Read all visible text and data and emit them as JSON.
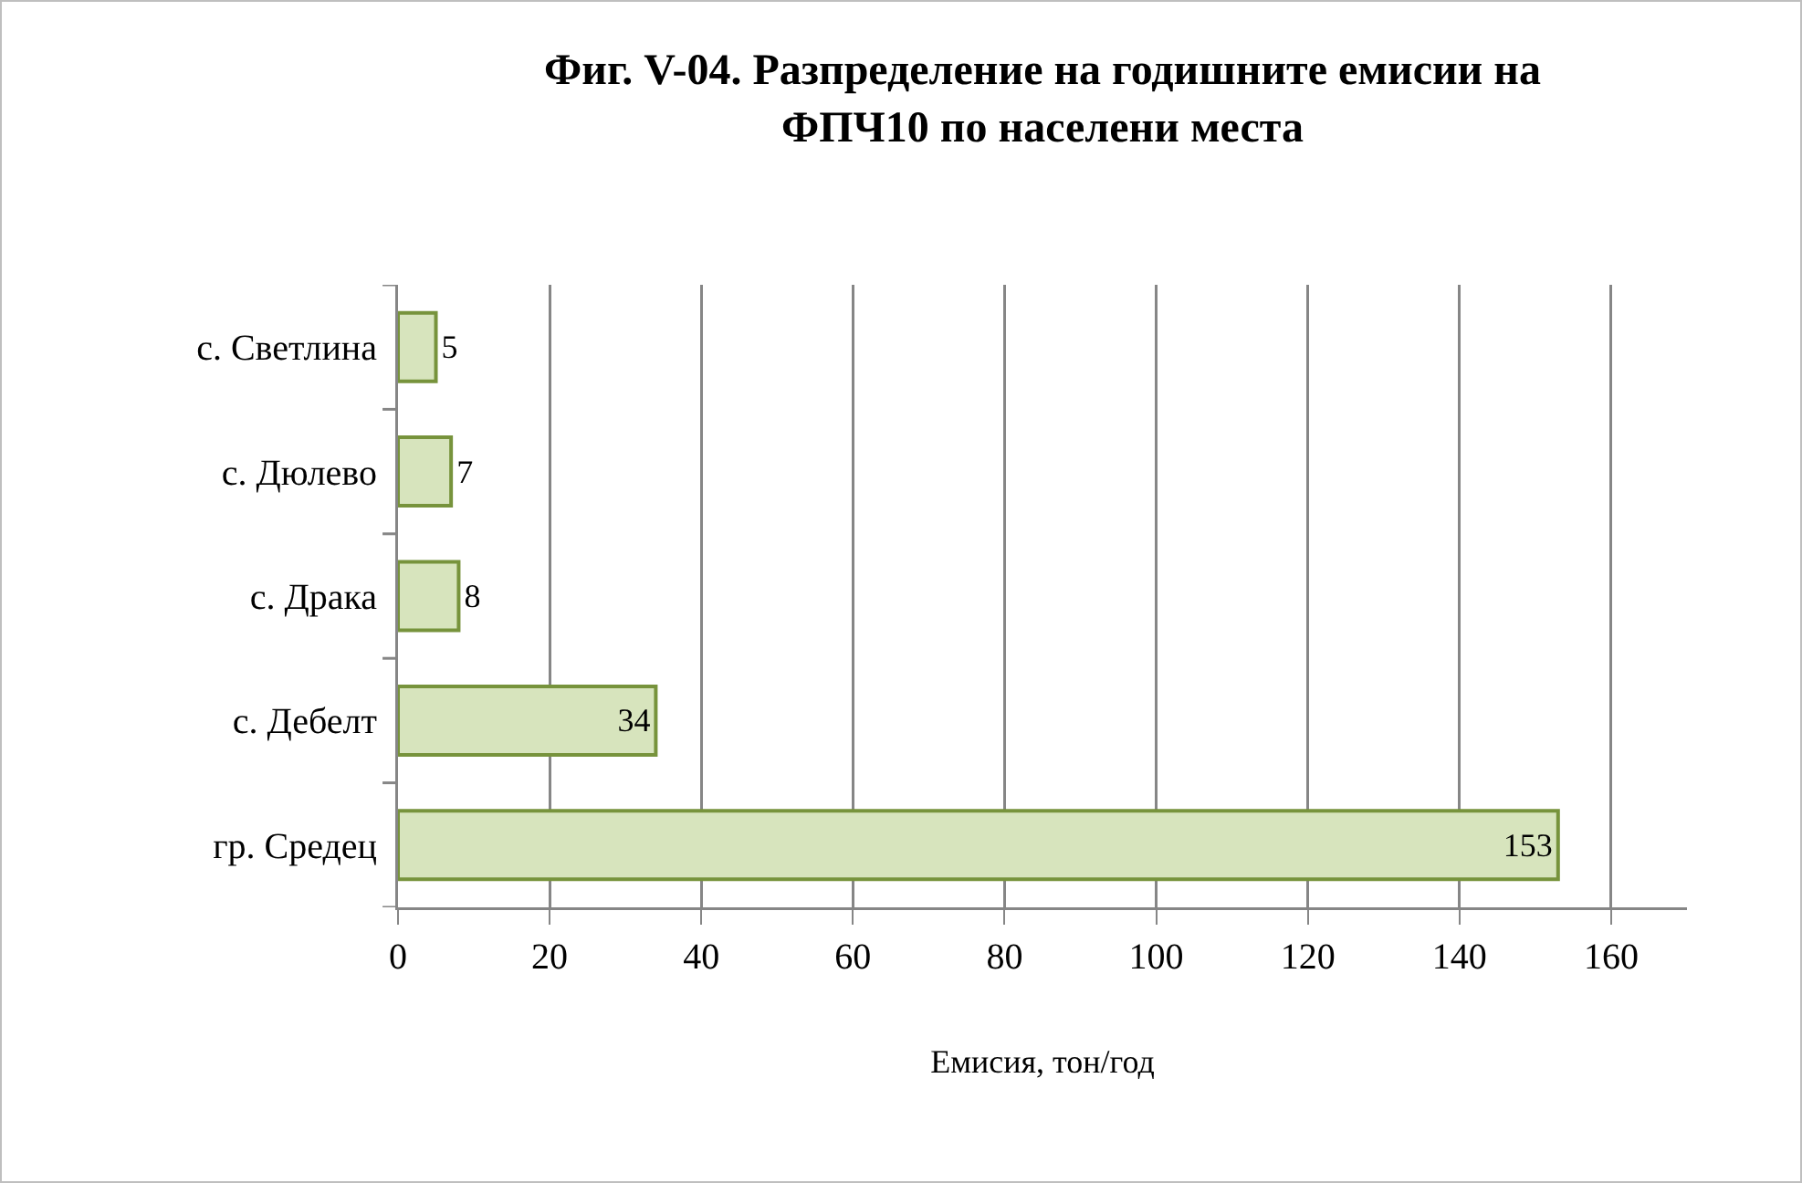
{
  "chart_data": {
    "type": "bar",
    "orientation": "horizontal",
    "title": "Фиг. V-04. Разпределение на годишните емисии на ФПЧ10 по населени места",
    "xlabel": "Емисия, тон/год",
    "categories": [
      "с. Светлина",
      "с. Дюлево",
      "с. Драка",
      "с. Дебелт",
      "гр. Средец"
    ],
    "values": [
      5,
      7,
      8,
      34,
      153
    ],
    "color": "#d7e4bd",
    "xlim": [
      0,
      170
    ],
    "xticks": [
      0,
      20,
      40,
      60,
      80,
      100,
      120,
      140,
      160
    ],
    "grid": "x",
    "data_labels": true
  }
}
